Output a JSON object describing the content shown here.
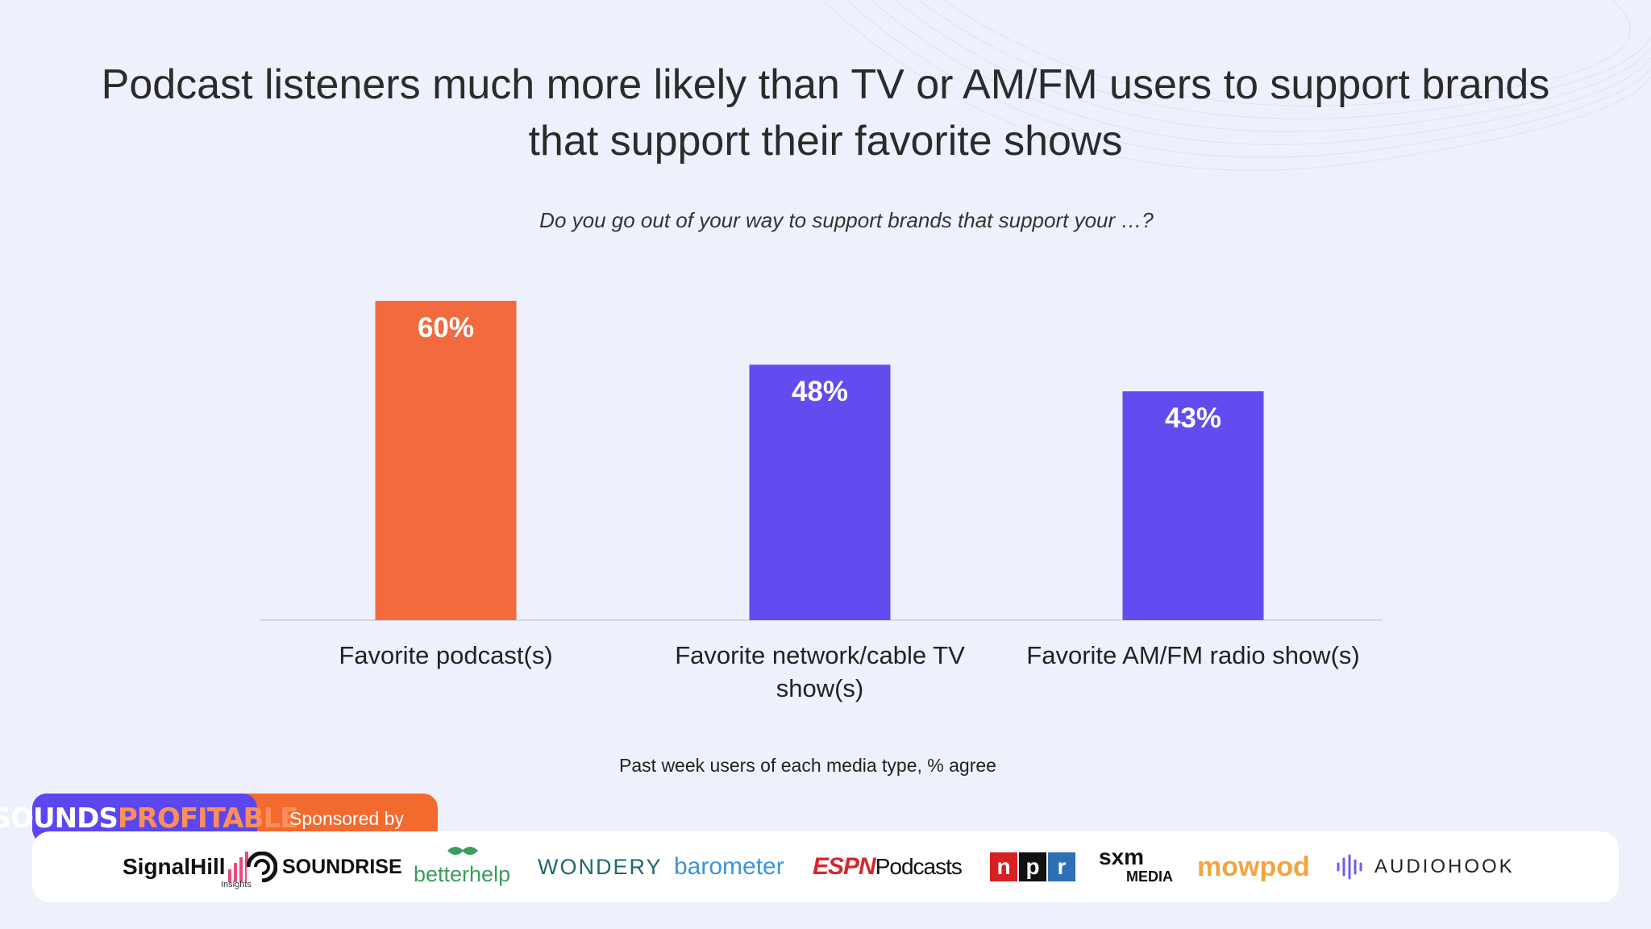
{
  "title": "Podcast listeners much more likely than TV or AM/FM users to support brands that support their favorite shows",
  "subtitle": "Do you go out of your way to support brands that support your …?",
  "chart_data": {
    "type": "bar",
    "categories": [
      "Favorite podcast(s)",
      "Favorite network/cable TV show(s)",
      "Favorite AM/FM radio show(s)"
    ],
    "values": [
      60,
      48,
      43
    ],
    "data_labels": [
      "60%",
      "48%",
      "43%"
    ],
    "unit": "%",
    "colors": [
      "#f26a3d",
      "#624cf0",
      "#624cf0"
    ],
    "ylim": [
      0,
      100
    ],
    "grid": false,
    "footnote": "Past week users of each media type, % agree"
  },
  "branding": {
    "brand_part1": "SOUNDS",
    "brand_part2": "PROFITABLE",
    "sponsored_label": "Sponsored by",
    "brand_color": "#5b47ef",
    "accent_color": "#f26a2e"
  },
  "sponsors": [
    {
      "name": "SignalHill",
      "sub": "Insights",
      "icon": "signal-bars-icon"
    },
    {
      "name": "SOUNDRISE",
      "icon": "soundrise-icon"
    },
    {
      "name": "betterhelp",
      "icon": "leaf-icon"
    },
    {
      "name": "WONDERY"
    },
    {
      "name": "barometer"
    },
    {
      "name": "ESPN",
      "name2": "Podcasts"
    },
    {
      "name": "npr",
      "letters": [
        "n",
        "p",
        "r"
      ]
    },
    {
      "name": "sxm",
      "name2": "MEDIA"
    },
    {
      "name": "mowpod"
    },
    {
      "name": "AUDIOHOOK",
      "icon": "audiohook-icon"
    }
  ]
}
